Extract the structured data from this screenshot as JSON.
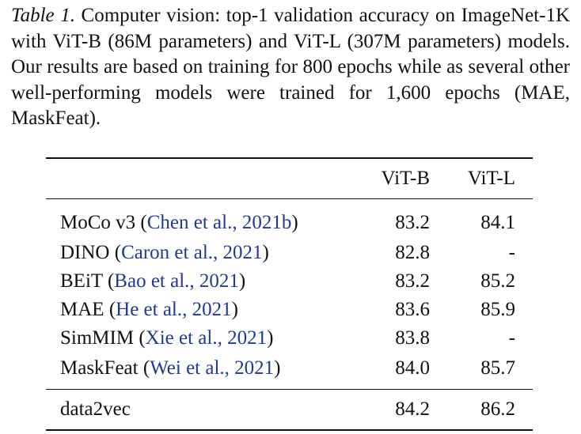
{
  "caption": {
    "label": "Table 1.",
    "text": " Computer vision: top-1 validation accuracy on ImageNet-1K with ViT-B (86M parameters) and ViT-L (307M parameters) models. Our results are based on training for 800 epochs while as several other well-performing models were trained for 1,600 epochs (MAE, MaskFeat)."
  },
  "table": {
    "headers": [
      "",
      "ViT-B",
      "ViT-L"
    ],
    "rows": [
      {
        "method": "MoCo v3",
        "cite": "Chen et al., 2021b",
        "vit_b": "83.2",
        "vit_l": "84.1"
      },
      {
        "method": "DINO",
        "cite": "Caron et al., 2021",
        "vit_b": "82.8",
        "vit_l": "-"
      },
      {
        "method": "BEiT",
        "cite": "Bao et al., 2021",
        "vit_b": "83.2",
        "vit_l": "85.2"
      },
      {
        "method": "MAE",
        "cite": "He et al., 2021",
        "vit_b": "83.6",
        "vit_l": "85.9"
      },
      {
        "method": "SimMIM",
        "cite": "Xie et al., 2021",
        "vit_b": "83.8",
        "vit_l": "-"
      },
      {
        "method": "MaskFeat",
        "cite": "Wei et al., 2021",
        "vit_b": "84.0",
        "vit_l": "85.7"
      }
    ],
    "final": {
      "method": "data2vec",
      "vit_b": "84.2",
      "vit_l": "86.2"
    }
  },
  "colors": {
    "citation": "#1f3a93",
    "text": "#111111"
  }
}
